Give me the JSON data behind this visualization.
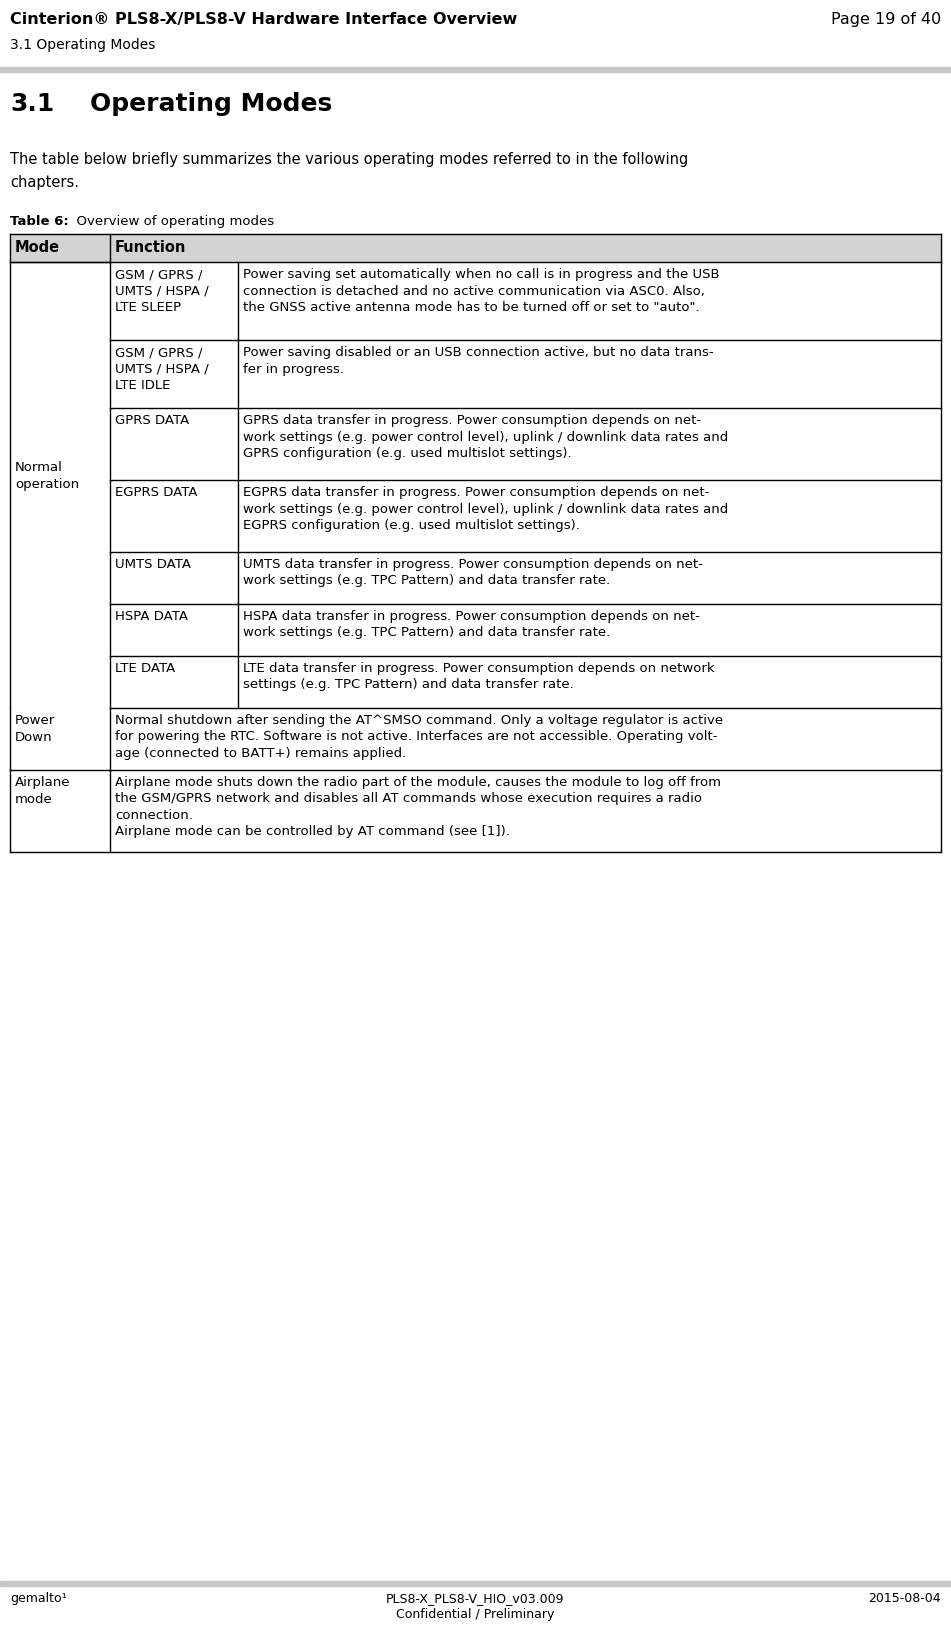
{
  "header_title": "Cinterion® PLS8-X/PLS8-V Hardware Interface Overview",
  "header_right": "Page 19 of 40",
  "header_sub": "3.1 Operating Modes",
  "section_number": "3.1",
  "section_name": "Operating Modes",
  "intro_line1": "The table below briefly summarizes the various operating modes referred to in the following",
  "intro_line2": "chapters.",
  "table_caption_bold": "Table 6:",
  "table_caption_normal": "  Overview of operating modes",
  "col_header_mode": "Mode",
  "col_header_function": "Function",
  "col_header_bg": "#d3d3d3",
  "footer_left": "gemalto¹",
  "footer_center1": "PLS8-X_PLS8-V_HIO_v03.009",
  "footer_center2": "Confidential / Preliminary",
  "footer_right": "2015-08-04",
  "rows": [
    {
      "mode": "Normal\noperation",
      "sub_rows": [
        {
          "sub_mode": "GSM / GPRS /\nUMTS / HSPA /\nLTE SLEEP",
          "function": "Power saving set automatically when no call is in progress and the USB\nconnection is detached and no active communication via ASC0. Also,\nthe GNSS active antenna mode has to be turned off or set to \"auto\"."
        },
        {
          "sub_mode": "GSM / GPRS /\nUMTS / HSPA /\nLTE IDLE",
          "function": "Power saving disabled or an USB connection active, but no data trans-\nfer in progress."
        },
        {
          "sub_mode": "GPRS DATA",
          "function": "GPRS data transfer in progress. Power consumption depends on net-\nwork settings (e.g. power control level), uplink / downlink data rates and\nGPRS configuration (e.g. used multislot settings)."
        },
        {
          "sub_mode": "EGPRS DATA",
          "function": "EGPRS data transfer in progress. Power consumption depends on net-\nwork settings (e.g. power control level), uplink / downlink data rates and\nEGPRS configuration (e.g. used multislot settings)."
        },
        {
          "sub_mode": "UMTS DATA",
          "function": "UMTS data transfer in progress. Power consumption depends on net-\nwork settings (e.g. TPC Pattern) and data transfer rate."
        },
        {
          "sub_mode": "HSPA DATA",
          "function": "HSPA data transfer in progress. Power consumption depends on net-\nwork settings (e.g. TPC Pattern) and data transfer rate."
        },
        {
          "sub_mode": "LTE DATA",
          "function": "LTE data transfer in progress. Power consumption depends on network\nsettings (e.g. TPC Pattern) and data transfer rate."
        }
      ]
    },
    {
      "mode": "Power\nDown",
      "sub_rows": [
        {
          "sub_mode": "",
          "function": "Normal shutdown after sending the AT^SMSO command. Only a voltage regulator is active\nfor powering the RTC. Software is not active. Interfaces are not accessible. Operating volt-\nage (connected to BATT+) remains applied."
        }
      ]
    },
    {
      "mode": "Airplane\nmode",
      "sub_rows": [
        {
          "sub_mode": "",
          "function": "Airplane mode shuts down the radio part of the module, causes the module to log off from\nthe GSM/GPRS network and disables all AT commands whose execution requires a radio\nconnection.\nAirplane mode can be controlled by AT command (see [1])."
        }
      ]
    }
  ]
}
